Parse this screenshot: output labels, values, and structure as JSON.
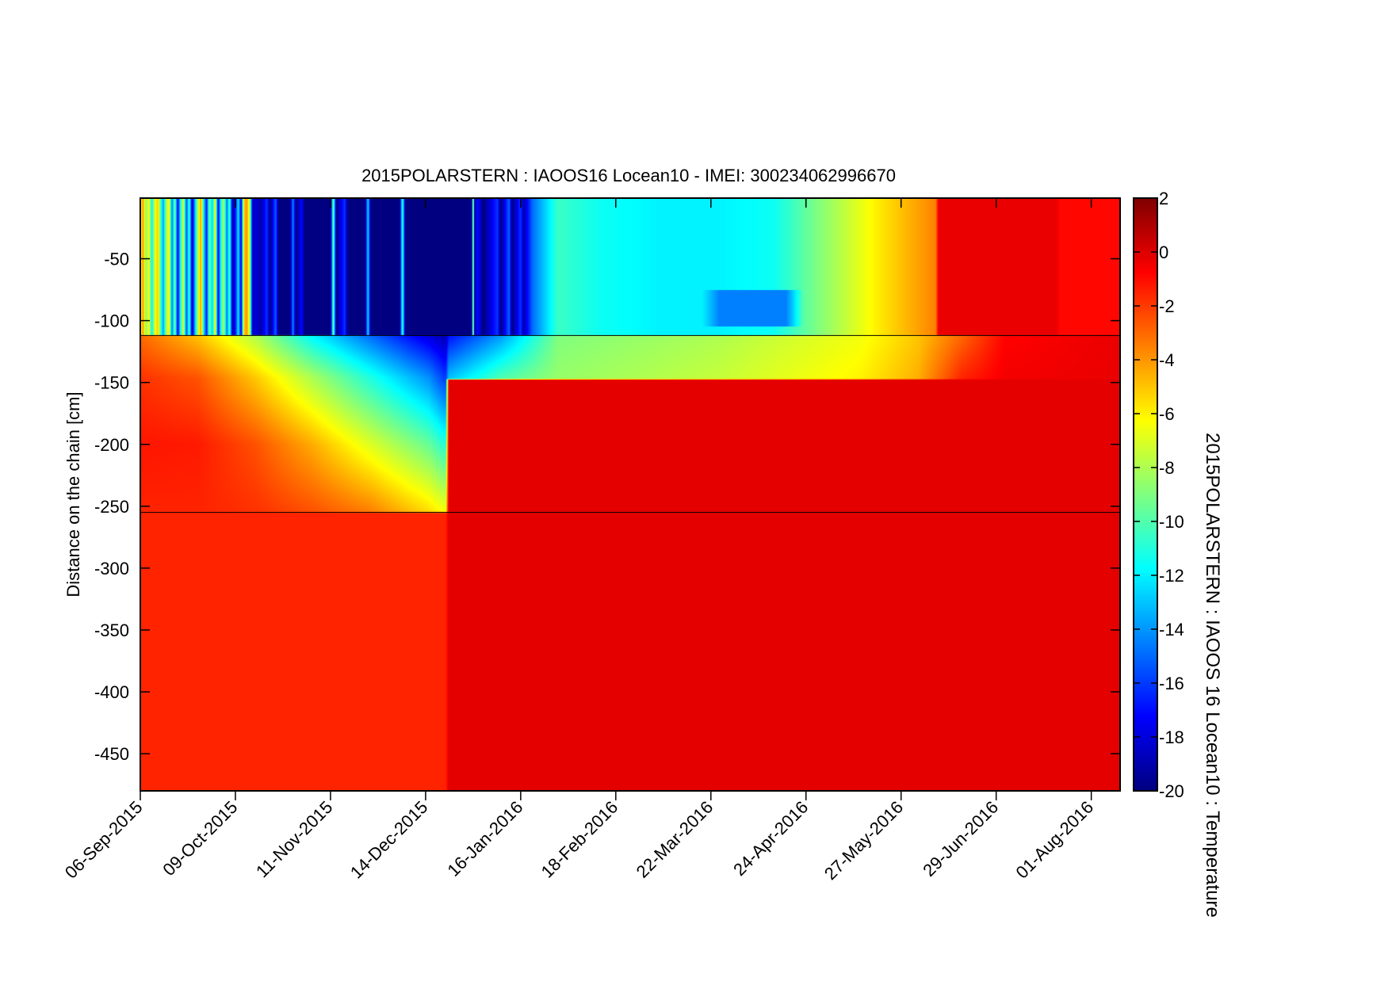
{
  "chart_data": {
    "type": "heatmap",
    "title": "2015POLARSTERN : IAOOS16  Locean10 - IMEI: 300234062996670",
    "ylabel": "Distance on the chain [cm]",
    "colorbar_label": "2015POLARSTERN : IAOOS 16 Locean10 : Temperature",
    "x_origin_date": "06-Sep-2015",
    "xlim_days": [
      0,
      340
    ],
    "ylim": [
      -480,
      -1
    ],
    "x_ticks": [
      {
        "day": 0,
        "label": "06-Sep-2015"
      },
      {
        "day": 33,
        "label": "09-Oct-2015"
      },
      {
        "day": 66,
        "label": "11-Nov-2015"
      },
      {
        "day": 99,
        "label": "14-Dec-2015"
      },
      {
        "day": 132,
        "label": "16-Jan-2016"
      },
      {
        "day": 165,
        "label": "18-Feb-2016"
      },
      {
        "day": 198,
        "label": "22-Mar-2016"
      },
      {
        "day": 231,
        "label": "24-Apr-2016"
      },
      {
        "day": 264,
        "label": "27-May-2016"
      },
      {
        "day": 297,
        "label": "29-Jun-2016"
      },
      {
        "day": 330,
        "label": "01-Aug-2016"
      }
    ],
    "y_ticks": [
      {
        "value": -50,
        "label": "-50"
      },
      {
        "value": -100,
        "label": "-100"
      },
      {
        "value": -150,
        "label": "-150"
      },
      {
        "value": -200,
        "label": "-200"
      },
      {
        "value": -250,
        "label": "-250"
      },
      {
        "value": -300,
        "label": "-300"
      },
      {
        "value": -350,
        "label": "-350"
      },
      {
        "value": -400,
        "label": "-400"
      },
      {
        "value": -450,
        "label": "-450"
      }
    ],
    "colorbar": {
      "range": [
        -20,
        2
      ],
      "colormap": "jet",
      "ticks": [
        {
          "value": 2,
          "label": "2"
        },
        {
          "value": 0,
          "label": "0"
        },
        {
          "value": -2,
          "label": "-2"
        },
        {
          "value": -4,
          "label": "-4"
        },
        {
          "value": -6,
          "label": "-6"
        },
        {
          "value": -8,
          "label": "-8"
        },
        {
          "value": -10,
          "label": "-10"
        },
        {
          "value": -12,
          "label": "-12"
        },
        {
          "value": -14,
          "label": "-14"
        },
        {
          "value": -16,
          "label": "-16"
        },
        {
          "value": -18,
          "label": "-18"
        },
        {
          "value": -20,
          "label": "-20"
        }
      ]
    },
    "reference_lines_cm": [
      -112,
      -255
    ],
    "air_layer": {
      "depth_range_cm": [
        -112,
        0
      ],
      "time_days": [
        0,
        1,
        2,
        3,
        4,
        5,
        6,
        7,
        8,
        9,
        10,
        11,
        12,
        13,
        14,
        15,
        16,
        17,
        18,
        19,
        20,
        21,
        22,
        23,
        24,
        25,
        26,
        27,
        28,
        29,
        30,
        31,
        32,
        33,
        34,
        35,
        36,
        37,
        38,
        39,
        40,
        42,
        44,
        45,
        47,
        48,
        52,
        53,
        54,
        56,
        57,
        66,
        67,
        68,
        71,
        72,
        78,
        79,
        80,
        90,
        91,
        92,
        106,
        115,
        115.5,
        116,
        117,
        119,
        124,
        125,
        128,
        129,
        132,
        133,
        136,
        140,
        145,
        160,
        180,
        200,
        220,
        235,
        245,
        255,
        265,
        272,
        276,
        277,
        318,
        319,
        340
      ],
      "temperature": [
        -7,
        -4,
        -9,
        -6,
        -12,
        -7,
        -5,
        -10,
        -14,
        -8,
        -6,
        -15,
        -9,
        -18,
        -11,
        -7,
        -16,
        -10,
        -19,
        -13,
        -8,
        -4,
        -12,
        -17,
        -9,
        -13,
        -6,
        -18,
        -11,
        -8,
        -15,
        -10,
        -19,
        -17,
        -12,
        -18,
        -5,
        -4,
        -8,
        -19,
        -18,
        -19,
        -16,
        -20,
        -15,
        -20,
        -20,
        -14,
        -20,
        -17,
        -20,
        -20,
        -9,
        -20,
        -16,
        -20,
        -20,
        -12,
        -20,
        -20,
        -10,
        -20,
        -20,
        -20,
        -6,
        -20,
        -17,
        -20,
        -16,
        -20,
        -15,
        -20,
        -16,
        -19,
        -15,
        -13,
        -10.5,
        -11.5,
        -12,
        -12,
        -11.5,
        -9,
        -7.5,
        -6,
        -4.8,
        -4,
        -3.5,
        -0.3,
        -0.3,
        -0.9,
        -0.9
      ]
    },
    "air_anomalies": [
      {
        "day_range": [
          195,
          230
        ],
        "depth_range_cm": [
          -105,
          -75
        ],
        "temperature": -14.5
      }
    ],
    "ice_ocean_profile": {
      "depths_cm": [
        -112,
        -147,
        -148,
        -200,
        -254,
        -256,
        -480
      ],
      "time_days": [
        0,
        20,
        40,
        60,
        80,
        100,
        106,
        107,
        125,
        145,
        200,
        250,
        270,
        285,
        300,
        340
      ],
      "temperature": [
        [
          -3,
          -1.8,
          -1.8,
          -1.2,
          -1.5,
          -1.5,
          -1.5
        ],
        [
          -5,
          -2.5,
          -2.5,
          -1.3,
          -1.5,
          -1.5,
          -1.5
        ],
        [
          -8,
          -5,
          -5,
          -2.5,
          -1.8,
          -1.5,
          -1.5
        ],
        [
          -12,
          -8,
          -8,
          -4.5,
          -2.5,
          -1.5,
          -1.5
        ],
        [
          -15,
          -11,
          -11,
          -7,
          -3.5,
          -1.5,
          -1.5
        ],
        [
          -18,
          -14,
          -14,
          -9.5,
          -5.5,
          -1.5,
          -1.5
        ],
        [
          -19,
          -16,
          -16,
          -11,
          -6.5,
          -1.5,
          -1.5
        ],
        [
          -17,
          -13,
          -0.2,
          -0.2,
          -0.2,
          -0.2,
          -0.2
        ],
        [
          -14,
          -10,
          -0.2,
          -0.2,
          -0.2,
          -0.2,
          -0.2
        ],
        [
          -9,
          -8.5,
          -0.2,
          -0.2,
          -0.2,
          -0.2,
          -0.2
        ],
        [
          -8,
          -7.5,
          -0.2,
          -0.2,
          -0.2,
          -0.2,
          -0.2
        ],
        [
          -6.5,
          -6,
          -0.2,
          -0.2,
          -0.2,
          -0.2,
          -0.2
        ],
        [
          -5,
          -4.5,
          -0.2,
          -0.2,
          -0.2,
          -0.2,
          -0.2
        ],
        [
          -3,
          -1.5,
          -0.2,
          -0.2,
          -0.2,
          -0.2,
          -0.2
        ],
        [
          -0.8,
          -0.5,
          -0.2,
          -0.2,
          -0.2,
          -0.2,
          -0.2
        ],
        [
          -0.3,
          -0.3,
          -0.2,
          -0.2,
          -0.2,
          -0.2,
          -0.2
        ]
      ]
    }
  }
}
